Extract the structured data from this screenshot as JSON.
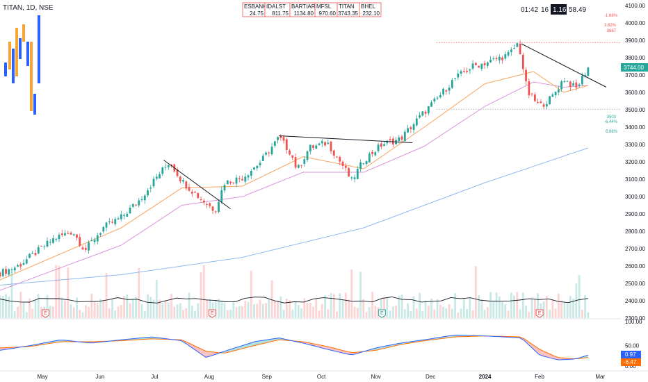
{
  "symbol": {
    "title": "TITAN, 1D, NSE"
  },
  "watchlist": [
    {
      "name": "ESBANK",
      "value": "24.75"
    },
    {
      "name": "IDALST",
      "value": "811.75"
    },
    {
      "name": "BARTIART",
      "value": "1134.80"
    },
    {
      "name": "MFSL",
      "value": "970.60"
    },
    {
      "name": "TITAN",
      "value": "3743.35"
    },
    {
      "name": "BHEL",
      "value": "232.10"
    }
  ],
  "stats": {
    "time": "01:42",
    "count": "16",
    "ratio": "1.16",
    "value": "58.49"
  },
  "annotations": {
    "pct_top": "-1.68%",
    "pct_mid": "3.82%",
    "level_3887": "3887",
    "level_3503": "3503",
    "pct_low1": "-6.44%",
    "pct_low2": "6.88%"
  },
  "price_badge": "3744.00",
  "macd_badges": {
    "signal": "0.97",
    "hist": "-6.47"
  },
  "x_labels": [
    "May",
    "Jun",
    "Jul",
    "Aug",
    "Sep",
    "Oct",
    "Nov",
    "Dec",
    "2024",
    "Feb",
    "Mar"
  ],
  "y_labels": [
    "4100.00",
    "4000.00",
    "3900.00",
    "3800.00",
    "3700.00",
    "3600.00",
    "3500.00",
    "3400.00",
    "3300.00",
    "3200.00",
    "3100.00",
    "3000.00",
    "2900.00",
    "2800.00",
    "2700.00",
    "2600.00",
    "2500.00",
    "2400.00",
    "2300.00"
  ],
  "osc_labels": [
    "100.00",
    "50.00",
    "0.00"
  ],
  "earnings_marker": "E",
  "colors": {
    "up": "#26a69a",
    "down": "#ef5350",
    "ema_fast": "#f7a35c",
    "ema_mid": "#d896d8",
    "ema_slow": "#90b8f0",
    "badge_green": "#26a69a",
    "badge_blue": "#2962ff",
    "badge_orange": "#ff6d00"
  },
  "chart_data": {
    "type": "candlestick",
    "title": "TITAN, 1D, NSE",
    "x_range": [
      "2023-05",
      "2024-03"
    ],
    "ylim": [
      2300,
      4100
    ],
    "last_price": 3744.0,
    "price_path": [
      [
        0.0,
        2560
      ],
      [
        0.03,
        2600
      ],
      [
        0.06,
        2680
      ],
      [
        0.09,
        2760
      ],
      [
        0.12,
        2800
      ],
      [
        0.14,
        2690
      ],
      [
        0.17,
        2820
      ],
      [
        0.2,
        2880
      ],
      [
        0.23,
        2980
      ],
      [
        0.26,
        3120
      ],
      [
        0.28,
        3200
      ],
      [
        0.3,
        3090
      ],
      [
        0.33,
        2990
      ],
      [
        0.355,
        2920
      ],
      [
        0.37,
        3080
      ],
      [
        0.4,
        3110
      ],
      [
        0.43,
        3200
      ],
      [
        0.46,
        3340
      ],
      [
        0.48,
        3250
      ],
      [
        0.49,
        3150
      ],
      [
        0.51,
        3280
      ],
      [
        0.54,
        3310
      ],
      [
        0.565,
        3180
      ],
      [
        0.58,
        3090
      ],
      [
        0.6,
        3210
      ],
      [
        0.63,
        3300
      ],
      [
        0.66,
        3330
      ],
      [
        0.69,
        3450
      ],
      [
        0.72,
        3560
      ],
      [
        0.75,
        3680
      ],
      [
        0.78,
        3750
      ],
      [
        0.81,
        3780
      ],
      [
        0.84,
        3820
      ],
      [
        0.855,
        3887
      ],
      [
        0.87,
        3600
      ],
      [
        0.89,
        3520
      ],
      [
        0.91,
        3570
      ],
      [
        0.93,
        3680
      ],
      [
        0.95,
        3620
      ],
      [
        0.97,
        3744
      ]
    ],
    "ema_fast": [
      [
        0.0,
        2520
      ],
      [
        0.2,
        2820
      ],
      [
        0.3,
        3050
      ],
      [
        0.4,
        3060
      ],
      [
        0.5,
        3230
      ],
      [
        0.6,
        3160
      ],
      [
        0.7,
        3400
      ],
      [
        0.8,
        3650
      ],
      [
        0.88,
        3720
      ],
      [
        0.93,
        3600
      ],
      [
        0.97,
        3640
      ]
    ],
    "ema_mid": [
      [
        0.0,
        2460
      ],
      [
        0.2,
        2720
      ],
      [
        0.3,
        2950
      ],
      [
        0.4,
        3000
      ],
      [
        0.5,
        3140
      ],
      [
        0.6,
        3140
      ],
      [
        0.7,
        3290
      ],
      [
        0.8,
        3520
      ],
      [
        0.88,
        3660
      ],
      [
        0.93,
        3630
      ],
      [
        0.97,
        3640
      ]
    ],
    "ema_slow": [
      [
        0.0,
        2490
      ],
      [
        0.2,
        2550
      ],
      [
        0.4,
        2650
      ],
      [
        0.6,
        2820
      ],
      [
        0.8,
        3080
      ],
      [
        0.97,
        3280
      ]
    ],
    "trendlines": [
      {
        "from": [
          0.27,
          3210
        ],
        "to": [
          0.38,
          2930
        ]
      },
      {
        "from": [
          0.46,
          3350
        ],
        "to": [
          0.68,
          3310
        ]
      },
      {
        "from": [
          0.86,
          3880
        ],
        "to": [
          1.0,
          3630
        ]
      }
    ],
    "levels": [
      {
        "value": 3887,
        "style": "dotted",
        "color": "down"
      },
      {
        "value": 3503,
        "style": "dotted",
        "color": "neutral"
      }
    ],
    "oscillator": {
      "range": [
        0,
        100
      ],
      "fast": [
        [
          0.0,
          40
        ],
        [
          0.05,
          50
        ],
        [
          0.1,
          62
        ],
        [
          0.15,
          55
        ],
        [
          0.2,
          62
        ],
        [
          0.25,
          68
        ],
        [
          0.3,
          60
        ],
        [
          0.34,
          25
        ],
        [
          0.37,
          38
        ],
        [
          0.42,
          58
        ],
        [
          0.46,
          66
        ],
        [
          0.5,
          55
        ],
        [
          0.54,
          42
        ],
        [
          0.58,
          30
        ],
        [
          0.62,
          45
        ],
        [
          0.66,
          55
        ],
        [
          0.7,
          62
        ],
        [
          0.75,
          72
        ],
        [
          0.8,
          70
        ],
        [
          0.86,
          66
        ],
        [
          0.89,
          30
        ],
        [
          0.92,
          20
        ],
        [
          0.95,
          22
        ],
        [
          0.97,
          30
        ]
      ],
      "slow": [
        [
          0.0,
          45
        ],
        [
          0.05,
          48
        ],
        [
          0.1,
          58
        ],
        [
          0.15,
          58
        ],
        [
          0.2,
          60
        ],
        [
          0.25,
          64
        ],
        [
          0.3,
          62
        ],
        [
          0.34,
          38
        ],
        [
          0.37,
          34
        ],
        [
          0.42,
          50
        ],
        [
          0.46,
          62
        ],
        [
          0.5,
          58
        ],
        [
          0.54,
          48
        ],
        [
          0.58,
          35
        ],
        [
          0.62,
          40
        ],
        [
          0.66,
          52
        ],
        [
          0.7,
          60
        ],
        [
          0.75,
          68
        ],
        [
          0.8,
          70
        ],
        [
          0.86,
          68
        ],
        [
          0.89,
          42
        ],
        [
          0.92,
          25
        ],
        [
          0.95,
          22
        ],
        [
          0.97,
          25
        ]
      ]
    }
  }
}
